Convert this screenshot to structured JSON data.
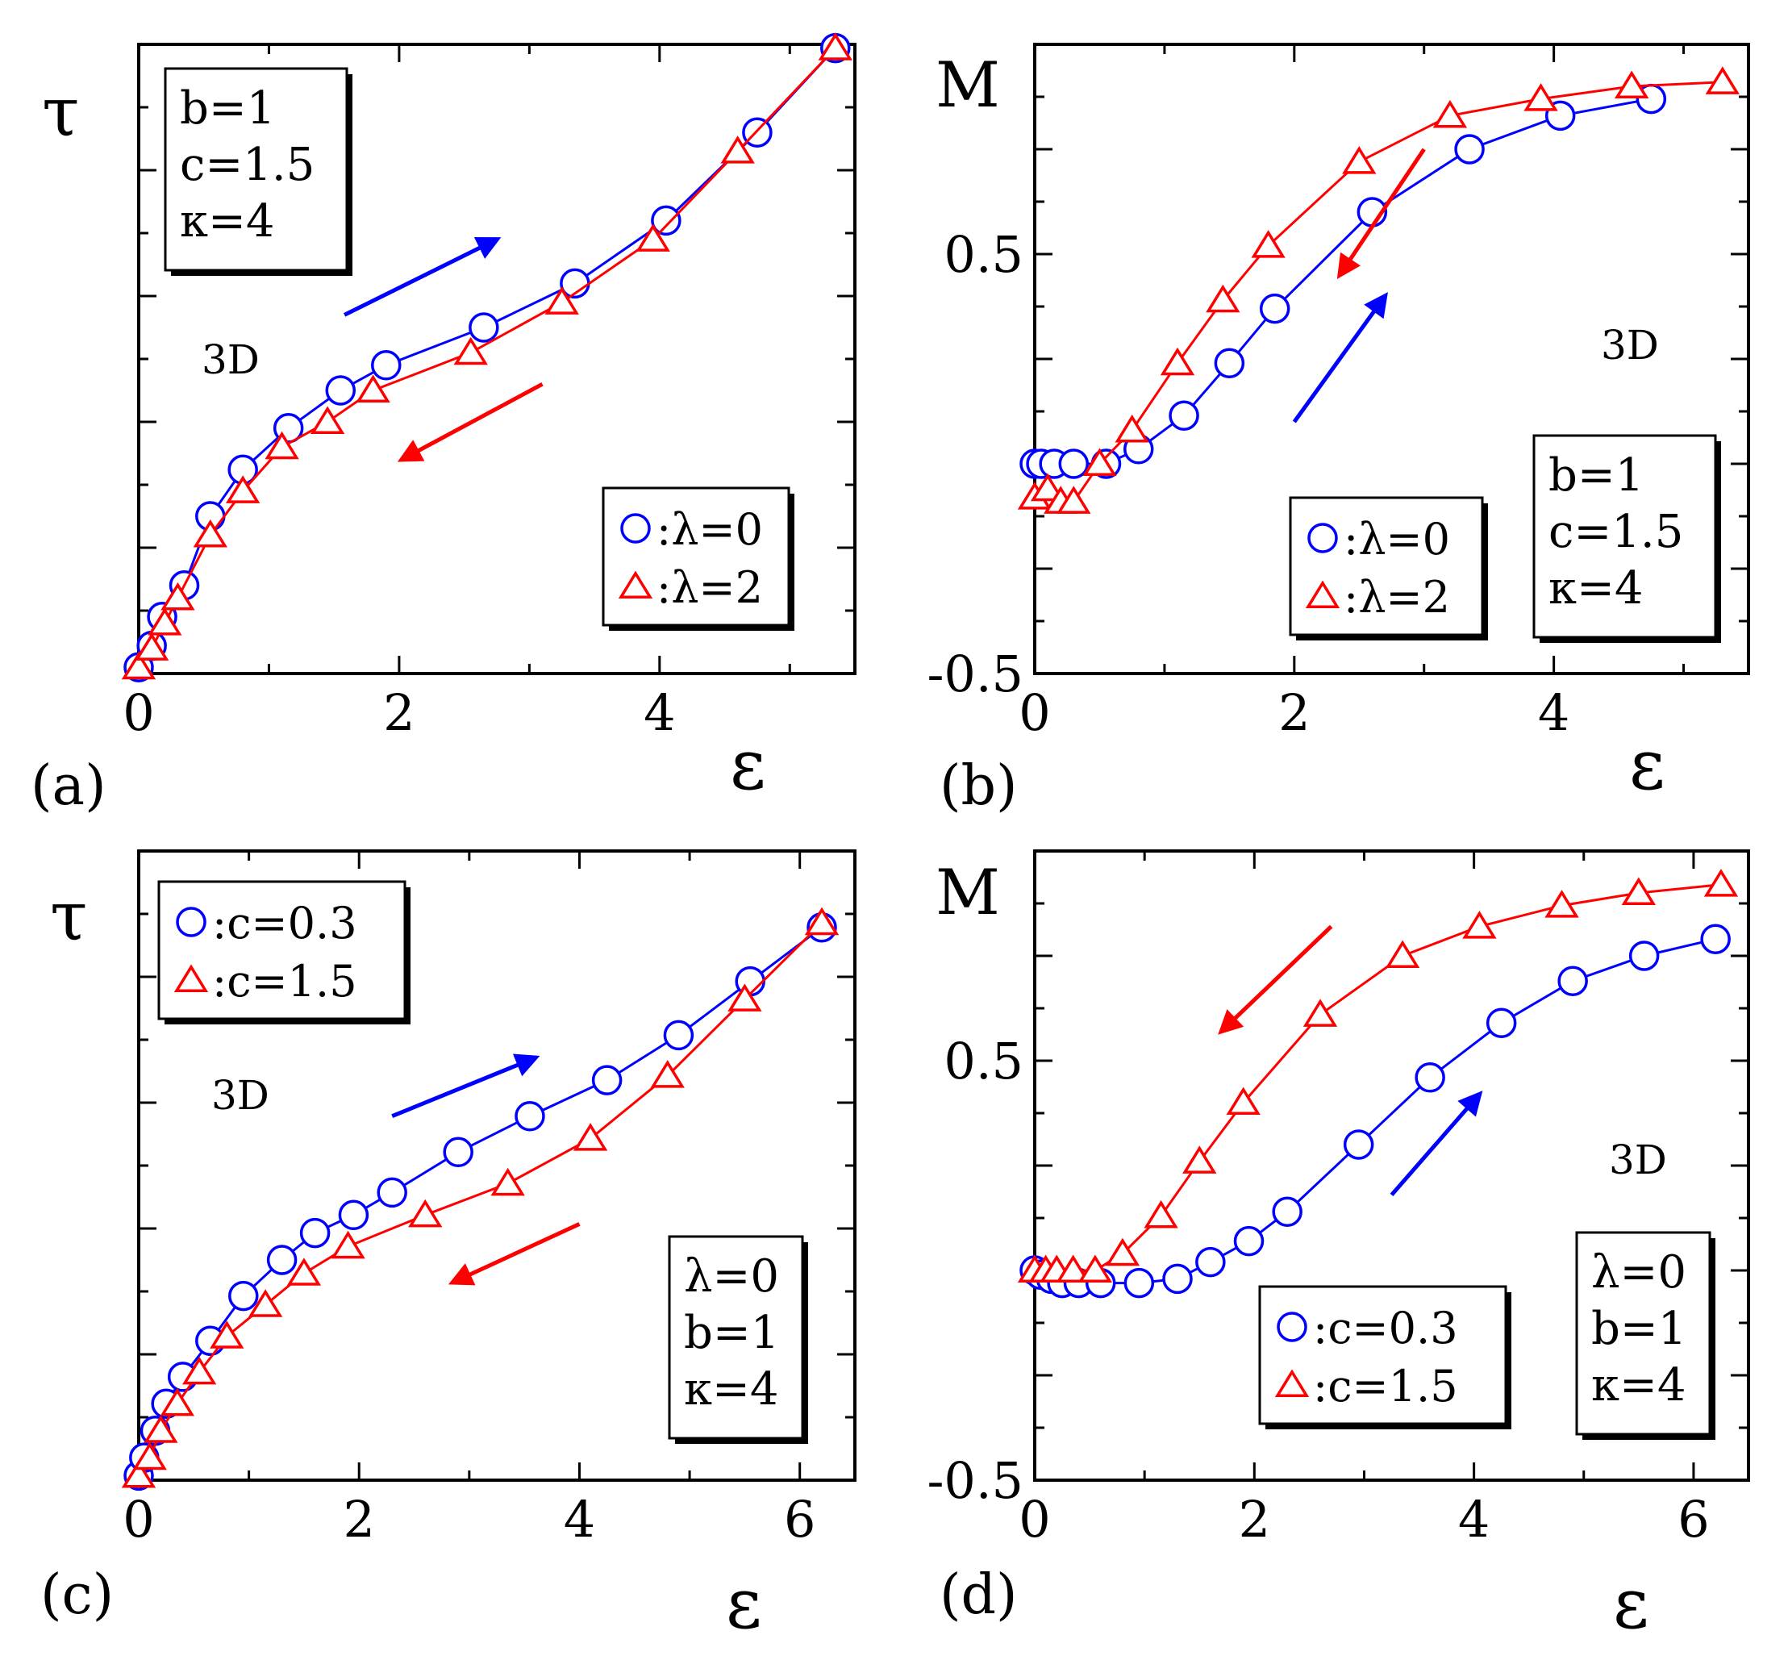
{
  "colors": {
    "blue": "#0000ff",
    "red": "#ff0000",
    "black": "#000000"
  },
  "chart_data": [
    {
      "type": "line",
      "panel_label": "(a)",
      "ylabel": "τ",
      "xlabel": "ε",
      "xlim": [
        0,
        5.5
      ],
      "ylim": [
        0,
        5
      ],
      "xticks": [
        0,
        2,
        4
      ],
      "xtick_labels": [
        "0",
        "2",
        "4"
      ],
      "yticks": [],
      "ytick_labels": [],
      "dimension_label": "3D",
      "param_box": {
        "lines": [
          "b=1",
          "c=1.5",
          "κ=4"
        ],
        "position": "top-left"
      },
      "legend": {
        "position": "bottom-right",
        "entries": [
          {
            "marker": "circle",
            "color": "blue",
            "label": ":λ=0"
          },
          {
            "marker": "triangle",
            "color": "red",
            "label": ":λ=2"
          }
        ]
      },
      "arrows": [
        {
          "color": "blue",
          "from": [
            1.58,
            2.85
          ],
          "to": [
            2.75,
            3.45
          ]
        },
        {
          "color": "red",
          "from": [
            3.1,
            2.3
          ],
          "to": [
            2.02,
            1.7
          ]
        }
      ],
      "series": [
        {
          "name": "λ=0",
          "color": "blue",
          "marker": "circle",
          "x": [
            0.0,
            0.1,
            0.18,
            0.35,
            0.55,
            0.8,
            1.15,
            1.55,
            1.9,
            2.65,
            3.35,
            4.05,
            4.75,
            5.35
          ],
          "y": [
            0.05,
            0.22,
            0.45,
            0.7,
            1.25,
            1.62,
            1.95,
            2.25,
            2.45,
            2.75,
            3.1,
            3.6,
            4.3,
            4.97
          ]
        },
        {
          "name": "λ=2",
          "color": "red",
          "marker": "triangle",
          "x": [
            0.0,
            0.1,
            0.2,
            0.3,
            0.55,
            0.8,
            1.1,
            1.45,
            1.8,
            2.55,
            3.25,
            3.95,
            4.6,
            5.35
          ],
          "y": [
            0.05,
            0.2,
            0.4,
            0.6,
            1.1,
            1.45,
            1.8,
            2.0,
            2.25,
            2.55,
            2.95,
            3.45,
            4.15,
            4.97
          ]
        }
      ]
    },
    {
      "type": "line",
      "panel_label": "(b)",
      "ylabel": "M",
      "xlabel": "ε",
      "xlim": [
        0,
        5.5
      ],
      "ylim": [
        -0.5,
        1.0
      ],
      "xticks": [
        0,
        2,
        4
      ],
      "xtick_labels": [
        "0",
        "2",
        "4"
      ],
      "yticks": [
        -0.5,
        0.5
      ],
      "ytick_labels": [
        "-0.5",
        "0.5"
      ],
      "dimension_label": "3D",
      "param_box": {
        "lines": [
          "b=1",
          "c=1.5",
          "κ=4"
        ],
        "position": "bottom-right"
      },
      "legend": {
        "position": "bottom-center",
        "entries": [
          {
            "marker": "circle",
            "color": "blue",
            "label": ":λ=0"
          },
          {
            "marker": "triangle",
            "color": "red",
            "label": ":λ=2"
          }
        ]
      },
      "arrows": [
        {
          "color": "blue",
          "from": [
            2.0,
            0.1
          ],
          "to": [
            2.7,
            0.4
          ]
        },
        {
          "color": "red",
          "from": [
            3.0,
            0.75
          ],
          "to": [
            2.35,
            0.45
          ]
        }
      ],
      "series": [
        {
          "name": "λ=0",
          "color": "blue",
          "marker": "circle",
          "x": [
            0.0,
            0.05,
            0.15,
            0.3,
            0.55,
            0.8,
            1.15,
            1.5,
            1.85,
            2.6,
            3.35,
            4.05,
            4.75
          ],
          "y": [
            0.0,
            0.0,
            0.0,
            0.0,
            0.0,
            0.035,
            0.115,
            0.24,
            0.37,
            0.6,
            0.75,
            0.83,
            0.87
          ]
        },
        {
          "name": "λ=2",
          "color": "red",
          "marker": "triangle",
          "x": [
            0.0,
            0.1,
            0.2,
            0.3,
            0.5,
            0.75,
            1.1,
            1.45,
            1.8,
            2.5,
            3.2,
            3.9,
            4.6,
            5.3
          ],
          "y": [
            -0.08,
            -0.06,
            -0.09,
            -0.09,
            0.0,
            0.08,
            0.24,
            0.39,
            0.52,
            0.72,
            0.83,
            0.87,
            0.9,
            0.91
          ]
        }
      ]
    },
    {
      "type": "line",
      "panel_label": "(c)",
      "ylabel": "τ",
      "xlabel": "ε",
      "xlim": [
        0,
        6.5
      ],
      "ylim": [
        0,
        7
      ],
      "xticks": [
        0,
        2,
        4,
        6
      ],
      "xtick_labels": [
        "0",
        "2",
        "4",
        "6"
      ],
      "yticks": [],
      "ytick_labels": [],
      "dimension_label": "3D",
      "param_box": {
        "lines": [
          "λ=0",
          "b=1",
          "κ=4"
        ],
        "position": "bottom-right"
      },
      "legend": {
        "position": "top-left",
        "entries": [
          {
            "marker": "circle",
            "color": "blue",
            "label": ":c=0.3"
          },
          {
            "marker": "triangle",
            "color": "red",
            "label": ":c=1.5"
          }
        ]
      },
      "arrows": [
        {
          "color": "blue",
          "from": [
            2.3,
            4.05
          ],
          "to": [
            3.6,
            4.7
          ]
        },
        {
          "color": "red",
          "from": [
            4.0,
            2.85
          ],
          "to": [
            2.85,
            2.2
          ]
        }
      ],
      "series": [
        {
          "name": "c=0.3",
          "color": "blue",
          "marker": "circle",
          "x": [
            0.0,
            0.05,
            0.15,
            0.25,
            0.4,
            0.65,
            0.95,
            1.3,
            1.6,
            1.95,
            2.3,
            2.9,
            3.55,
            4.25,
            4.9,
            5.55,
            6.2
          ],
          "y": [
            0.05,
            0.25,
            0.55,
            0.85,
            1.15,
            1.55,
            2.05,
            2.45,
            2.75,
            2.95,
            3.2,
            3.65,
            4.05,
            4.45,
            4.95,
            5.55,
            6.15
          ]
        },
        {
          "name": "c=1.5",
          "color": "red",
          "marker": "triangle",
          "x": [
            0.0,
            0.1,
            0.2,
            0.35,
            0.55,
            0.8,
            1.15,
            1.5,
            1.9,
            2.6,
            3.35,
            4.1,
            4.8,
            5.5,
            6.2
          ],
          "y": [
            0.05,
            0.25,
            0.55,
            0.85,
            1.2,
            1.6,
            1.95,
            2.3,
            2.6,
            2.95,
            3.3,
            3.8,
            4.5,
            5.35,
            6.2
          ]
        }
      ]
    },
    {
      "type": "line",
      "panel_label": "(d)",
      "ylabel": "M",
      "xlabel": "ε",
      "xlim": [
        0,
        6.5
      ],
      "ylim": [
        -0.5,
        1.0
      ],
      "xticks": [
        0,
        2,
        4,
        6
      ],
      "xtick_labels": [
        "0",
        "2",
        "4",
        "6"
      ],
      "yticks": [
        -0.5,
        0.5
      ],
      "ytick_labels": [
        "-0.5",
        "0.5"
      ],
      "dimension_label": "3D",
      "param_box": {
        "lines": [
          "λ=0",
          "b=1",
          "κ=4"
        ],
        "position": "bottom-right"
      },
      "legend": {
        "position": "bottom-center",
        "entries": [
          {
            "marker": "circle",
            "color": "blue",
            "label": ":c=0.3"
          },
          {
            "marker": "triangle",
            "color": "red",
            "label": ":c=1.5"
          }
        ]
      },
      "arrows": [
        {
          "color": "blue",
          "from": [
            3.25,
            0.18
          ],
          "to": [
            4.05,
            0.42
          ]
        },
        {
          "color": "red",
          "from": [
            2.7,
            0.82
          ],
          "to": [
            1.7,
            0.57
          ]
        }
      ],
      "series": [
        {
          "name": "c=0.3",
          "color": "blue",
          "marker": "circle",
          "x": [
            0.0,
            0.05,
            0.15,
            0.25,
            0.4,
            0.6,
            0.95,
            1.3,
            1.6,
            1.95,
            2.3,
            2.95,
            3.6,
            4.25,
            4.9,
            5.55,
            6.2
          ],
          "y": [
            0.0,
            -0.01,
            -0.02,
            -0.03,
            -0.03,
            -0.03,
            -0.03,
            -0.02,
            0.02,
            0.07,
            0.14,
            0.3,
            0.46,
            0.59,
            0.69,
            0.75,
            0.79
          ]
        },
        {
          "name": "c=1.5",
          "color": "red",
          "marker": "triangle",
          "x": [
            0.0,
            0.1,
            0.2,
            0.35,
            0.55,
            0.8,
            1.15,
            1.5,
            1.9,
            2.6,
            3.35,
            4.05,
            4.8,
            5.5,
            6.25
          ],
          "y": [
            0.0,
            0.0,
            0.0,
            0.0,
            0.0,
            0.04,
            0.13,
            0.26,
            0.4,
            0.61,
            0.75,
            0.82,
            0.87,
            0.9,
            0.92
          ]
        }
      ]
    }
  ]
}
